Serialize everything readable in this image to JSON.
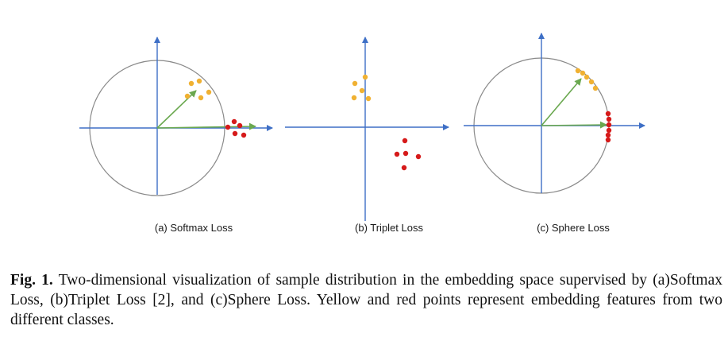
{
  "figure": {
    "colors": {
      "class_a": "#f0b132",
      "class_b": "#d61a1a",
      "axis": "#3e6fc6",
      "vector": "#6aa84f",
      "circle": "#8a8a8a"
    },
    "panels": [
      {
        "label": "(a) Softmax Loss",
        "has_circle": true,
        "vectors": [
          "toward-class-a",
          "toward-class-b"
        ],
        "class_a_layout": "cluster",
        "class_b_layout": "cluster"
      },
      {
        "label": "(b) Triplet Loss",
        "has_circle": false,
        "vectors": [],
        "class_a_layout": "cluster",
        "class_b_layout": "cluster"
      },
      {
        "label": "(c) Sphere Loss",
        "has_circle": true,
        "vectors": [
          "toward-class-a",
          "toward-class-b"
        ],
        "class_a_layout": "on-circle",
        "class_b_layout": "on-circle"
      }
    ]
  },
  "caption": {
    "label": "Fig. 1.",
    "text": " Two-dimensional visualization of sample distribution in the embedding space supervised by (a)Softmax Loss, (b)Triplet Loss [2], and (c)Sphere Loss. Yellow and red points represent embedding features from two different classes."
  }
}
